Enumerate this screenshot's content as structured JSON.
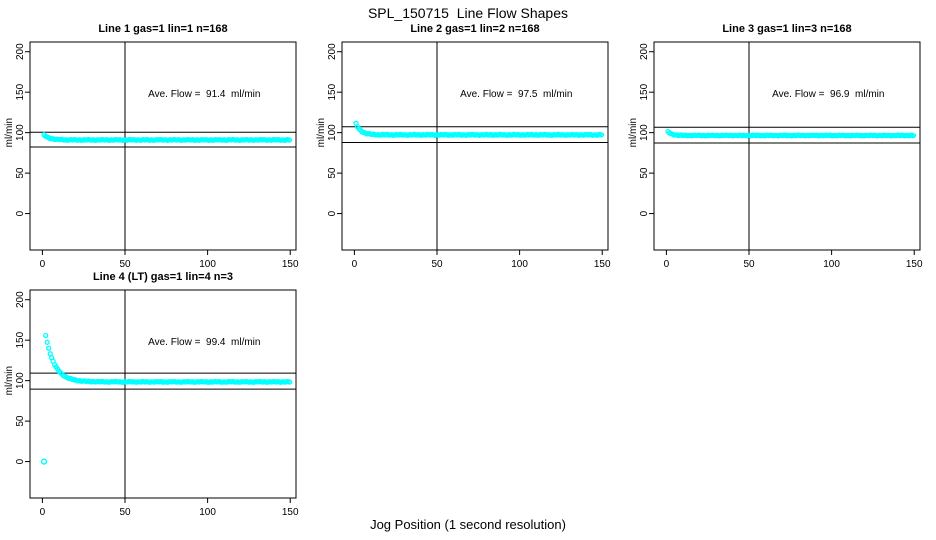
{
  "figure": {
    "title": "SPL_150715  Line Flow Shapes",
    "xlabel": "Jog Position (1 second resolution)",
    "accent_color": "#00FFFF",
    "axis_color": "#000000",
    "background": "#FFFFFF"
  },
  "chart_data": [
    {
      "type": "scatter",
      "title": "Line 1 gas=1 lin=1 n=168",
      "annotation": "Ave. Flow =  91.4  ml/min",
      "ave_flow_ml_min": 91.4,
      "n": 168,
      "ylabel": "ml/min",
      "x_ticks": [
        0,
        50,
        100,
        150
      ],
      "y_ticks": [
        0,
        50,
        100,
        150,
        200
      ],
      "xlim": [
        -7.5,
        153.5
      ],
      "ylim": [
        -45,
        212
      ],
      "v_line_x": 50,
      "h_lines": [
        100.5,
        82.3
      ],
      "marker": "open-circle",
      "series": {
        "x_start": 1,
        "x_end": 150,
        "x_step": 0.9,
        "flat": 91,
        "start_y": 97,
        "tau": 3.5,
        "jitter": 0.5
      },
      "extra_points": []
    },
    {
      "type": "scatter",
      "title": "Line 2 gas=1 lin=2 n=168",
      "annotation": "Ave. Flow =  97.5  ml/min",
      "ave_flow_ml_min": 97.5,
      "n": 168,
      "ylabel": "ml/min",
      "x_ticks": [
        0,
        50,
        100,
        150
      ],
      "y_ticks": [
        0,
        50,
        100,
        150,
        200
      ],
      "xlim": [
        -7.5,
        153.5
      ],
      "ylim": [
        -45,
        212
      ],
      "v_line_x": 50,
      "h_lines": [
        107.3,
        87.8
      ],
      "marker": "open-circle",
      "series": {
        "x_start": 1,
        "x_end": 150,
        "x_step": 0.9,
        "flat": 97.3,
        "start_y": 111,
        "tau": 3,
        "jitter": 0.6
      },
      "extra_points": []
    },
    {
      "type": "scatter",
      "title": "Line 3 gas=1 lin=3 n=168",
      "annotation": "Ave. Flow =  96.9  ml/min",
      "ave_flow_ml_min": 96.9,
      "n": 168,
      "ylabel": "ml/min",
      "x_ticks": [
        0,
        50,
        100,
        150
      ],
      "y_ticks": [
        0,
        50,
        100,
        150,
        200
      ],
      "xlim": [
        -7.5,
        153.5
      ],
      "ylim": [
        -45,
        212
      ],
      "v_line_x": 50,
      "h_lines": [
        106.6,
        87.2
      ],
      "marker": "open-circle",
      "series": {
        "x_start": 1,
        "x_end": 150,
        "x_step": 0.9,
        "flat": 96.5,
        "start_y": 101,
        "tau": 2.5,
        "jitter": 0.5
      },
      "extra_points": []
    },
    {
      "type": "scatter",
      "title": "Line 4 (LT) gas=1 lin=4 n=3",
      "annotation": "Ave. Flow =  99.4  ml/min",
      "ave_flow_ml_min": 99.4,
      "n": 3,
      "ylabel": "ml/min",
      "x_ticks": [
        0,
        50,
        100,
        150
      ],
      "y_ticks": [
        0,
        50,
        100,
        150,
        200
      ],
      "xlim": [
        -7.5,
        153.5
      ],
      "ylim": [
        -45,
        212
      ],
      "v_line_x": 50,
      "h_lines": [
        109.3,
        89.5
      ],
      "marker": "open-circle",
      "series": {
        "x_start": 2,
        "x_end": 150,
        "x_step": 0.9,
        "flat": 98.5,
        "start_y": 156,
        "tau": 5.5,
        "jitter": 0.5
      },
      "extra_points": [
        [
          1,
          0
        ]
      ]
    }
  ]
}
